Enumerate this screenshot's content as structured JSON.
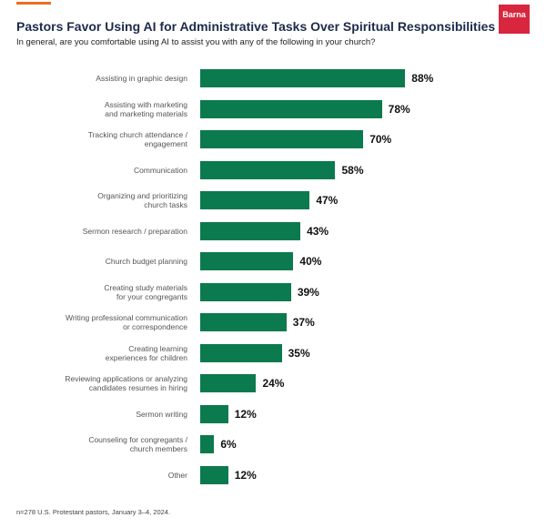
{
  "logo": "Barna",
  "chart_data": {
    "type": "bar",
    "title": "Pastors Favor Using AI for Administrative Tasks Over Spiritual Responsibilities",
    "subtitle": "In general, are you comfortable using AI to assist you with any of the following in your church?",
    "categories": [
      "Assisting in graphic design",
      "Assisting with marketing\nand marketing materials",
      "Tracking church attendance /\nengagement",
      "Communication",
      "Organizing and prioritizing\nchurch tasks",
      "Sermon research / preparation",
      "Church budget planning",
      "Creating study materials\nfor your congregants",
      "Writing professional communication\nor correspondence",
      "Creating learning\nexperiences for children",
      "Reviewing applications or analyzing\ncandidates resumes in hiring",
      "Sermon writing",
      "Counseling for congregants /\nchurch members",
      "Other"
    ],
    "values": [
      88,
      78,
      70,
      58,
      47,
      43,
      40,
      39,
      37,
      35,
      24,
      12,
      6,
      12
    ],
    "value_labels": [
      "88%",
      "78%",
      "70%",
      "58%",
      "47%",
      "43%",
      "40%",
      "39%",
      "37%",
      "35%",
      "24%",
      "12%",
      "6%",
      "12%"
    ],
    "color": "#0b7a4e",
    "footnote": "n=278 U.S. Protestant pastors, January 3–4, 2024."
  }
}
